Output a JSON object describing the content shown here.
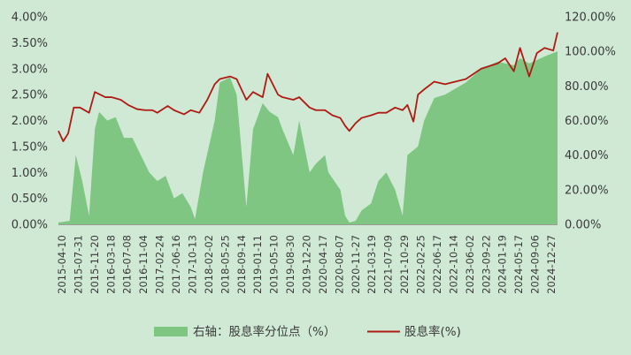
{
  "colors": {
    "background": "#cfe9d4",
    "area_fill": "#7fc683",
    "line": "#b01a14",
    "grid": "#bfdcc4",
    "axis": "#9a9a9a",
    "text": "#3a3a3a"
  },
  "chart_data": {
    "type": "area",
    "title": "",
    "grid": false,
    "legend_position": "bottom",
    "left_axis": {
      "ylim": [
        0,
        4
      ],
      "ticks": [
        "0.00%",
        "0.50%",
        "1.00%",
        "1.50%",
        "2.00%",
        "2.50%",
        "3.00%",
        "3.50%",
        "4.00%"
      ]
    },
    "right_axis": {
      "ylim": [
        0,
        120
      ],
      "ticks": [
        "0.00%",
        "20.00%",
        "40.00%",
        "60.00%",
        "80.00%",
        "100.00%",
        "120.00%"
      ]
    },
    "x_tick_labels": [
      "2015-04-10",
      "2015-07-31",
      "2015-11-20",
      "2016-03-18",
      "2016-07-08",
      "2016-11-04",
      "2017-02-24",
      "2017-06-16",
      "2017-10-13",
      "2018-02-02",
      "2018-05-25",
      "2018-09-14",
      "2019-01-11",
      "2019-05-10",
      "2019-08-30",
      "2019-12-20",
      "2020-04-17",
      "2020-08-07",
      "2020-11-27",
      "2021-03-19",
      "2021-07-09",
      "2021-10-29",
      "2022-02-25",
      "2022-06-17",
      "2022-10-14",
      "2023-06-02",
      "2023-09-22",
      "2024-01-19",
      "2024-05-17",
      "2024-09-06",
      "2024-12-27"
    ],
    "series": [
      {
        "name": "右轴：股息率分位点（%）",
        "axis": "right",
        "style": "area",
        "points": [
          [
            "2015-04-10",
            1
          ],
          [
            "2015-07-01",
            2
          ],
          [
            "2015-08-15",
            40
          ],
          [
            "2015-10-01",
            25
          ],
          [
            "2015-11-20",
            5
          ],
          [
            "2016-01-01",
            55
          ],
          [
            "2016-02-01",
            65
          ],
          [
            "2016-04-01",
            60
          ],
          [
            "2016-06-01",
            62
          ],
          [
            "2016-08-01",
            50
          ],
          [
            "2016-10-01",
            50
          ],
          [
            "2016-12-01",
            40
          ],
          [
            "2017-02-01",
            30
          ],
          [
            "2017-04-01",
            25
          ],
          [
            "2017-06-01",
            28
          ],
          [
            "2017-08-01",
            15
          ],
          [
            "2017-10-01",
            18
          ],
          [
            "2017-12-01",
            10
          ],
          [
            "2018-01-01",
            3
          ],
          [
            "2018-03-01",
            30
          ],
          [
            "2018-05-25",
            60
          ],
          [
            "2018-07-01",
            82
          ],
          [
            "2018-09-14",
            85
          ],
          [
            "2018-11-01",
            75
          ],
          [
            "2019-01-11",
            10
          ],
          [
            "2019-03-01",
            55
          ],
          [
            "2019-05-10",
            70
          ],
          [
            "2019-07-01",
            65
          ],
          [
            "2019-08-30",
            62
          ],
          [
            "2019-10-01",
            55
          ],
          [
            "2019-12-20",
            40
          ],
          [
            "2020-02-01",
            60
          ],
          [
            "2020-04-17",
            30
          ],
          [
            "2020-06-01",
            35
          ],
          [
            "2020-08-07",
            40
          ],
          [
            "2020-09-01",
            30
          ],
          [
            "2020-11-27",
            20
          ],
          [
            "2021-01-01",
            5
          ],
          [
            "2021-02-01",
            1
          ],
          [
            "2021-03-19",
            2
          ],
          [
            "2021-05-01",
            8
          ],
          [
            "2021-07-09",
            12
          ],
          [
            "2021-09-01",
            25
          ],
          [
            "2021-10-29",
            30
          ],
          [
            "2022-01-01",
            20
          ],
          [
            "2022-02-25",
            5
          ],
          [
            "2022-04-01",
            40
          ],
          [
            "2022-06-17",
            45
          ],
          [
            "2022-08-01",
            60
          ],
          [
            "2022-10-14",
            73
          ],
          [
            "2023-01-01",
            75
          ],
          [
            "2023-06-02",
            82
          ],
          [
            "2023-09-22",
            90
          ],
          [
            "2024-01-19",
            94
          ],
          [
            "2024-05-17",
            92
          ],
          [
            "2024-07-01",
            96
          ],
          [
            "2024-09-06",
            93
          ],
          [
            "2024-12-27",
            97
          ],
          [
            "2025-04-01",
            100
          ]
        ]
      },
      {
        "name": "股息率(%)",
        "axis": "left",
        "style": "line",
        "points": [
          [
            "2015-04-10",
            1.8
          ],
          [
            "2015-05-15",
            1.6
          ],
          [
            "2015-06-20",
            1.75
          ],
          [
            "2015-07-31",
            2.25
          ],
          [
            "2015-09-15",
            2.25
          ],
          [
            "2015-11-20",
            2.15
          ],
          [
            "2016-01-01",
            2.55
          ],
          [
            "2016-03-18",
            2.45
          ],
          [
            "2016-05-01",
            2.45
          ],
          [
            "2016-07-08",
            2.4
          ],
          [
            "2016-09-01",
            2.3
          ],
          [
            "2016-11-04",
            2.22
          ],
          [
            "2017-01-01",
            2.2
          ],
          [
            "2017-02-24",
            2.2
          ],
          [
            "2017-04-01",
            2.15
          ],
          [
            "2017-06-16",
            2.28
          ],
          [
            "2017-08-01",
            2.2
          ],
          [
            "2017-10-13",
            2.12
          ],
          [
            "2017-12-01",
            2.2
          ],
          [
            "2018-02-02",
            2.15
          ],
          [
            "2018-04-01",
            2.4
          ],
          [
            "2018-05-25",
            2.7
          ],
          [
            "2018-07-01",
            2.8
          ],
          [
            "2018-09-14",
            2.85
          ],
          [
            "2018-11-01",
            2.8
          ],
          [
            "2019-01-11",
            2.4
          ],
          [
            "2019-03-01",
            2.55
          ],
          [
            "2019-05-10",
            2.45
          ],
          [
            "2019-06-15",
            2.9
          ],
          [
            "2019-08-30",
            2.5
          ],
          [
            "2019-10-01",
            2.45
          ],
          [
            "2019-12-20",
            2.4
          ],
          [
            "2020-02-01",
            2.45
          ],
          [
            "2020-04-17",
            2.25
          ],
          [
            "2020-06-01",
            2.2
          ],
          [
            "2020-08-07",
            2.2
          ],
          [
            "2020-10-01",
            2.1
          ],
          [
            "2020-11-27",
            2.05
          ],
          [
            "2021-01-01",
            1.9
          ],
          [
            "2021-02-01",
            1.8
          ],
          [
            "2021-03-19",
            1.95
          ],
          [
            "2021-05-01",
            2.05
          ],
          [
            "2021-07-09",
            2.1
          ],
          [
            "2021-09-01",
            2.15
          ],
          [
            "2021-10-29",
            2.15
          ],
          [
            "2022-01-01",
            2.25
          ],
          [
            "2022-02-25",
            2.2
          ],
          [
            "2022-04-01",
            2.3
          ],
          [
            "2022-05-15",
            1.98
          ],
          [
            "2022-06-17",
            2.5
          ],
          [
            "2022-08-01",
            2.6
          ],
          [
            "2022-10-14",
            2.75
          ],
          [
            "2023-01-01",
            2.7
          ],
          [
            "2023-06-02",
            2.8
          ],
          [
            "2023-09-22",
            3.0
          ],
          [
            "2024-01-19",
            3.1
          ],
          [
            "2024-03-15",
            3.2
          ],
          [
            "2024-05-17",
            2.95
          ],
          [
            "2024-07-01",
            3.4
          ],
          [
            "2024-09-06",
            2.85
          ],
          [
            "2024-11-01",
            3.3
          ],
          [
            "2024-12-27",
            3.4
          ],
          [
            "2025-03-01",
            3.35
          ],
          [
            "2025-04-01",
            3.7
          ]
        ]
      }
    ]
  }
}
